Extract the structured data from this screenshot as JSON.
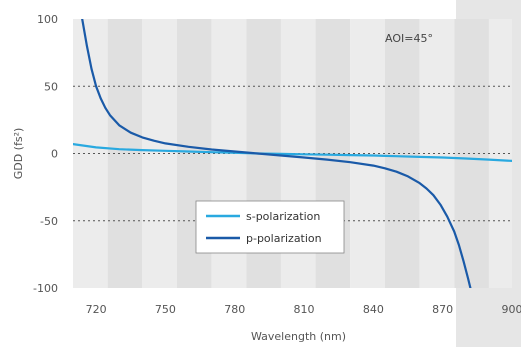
{
  "chart_data": {
    "type": "line",
    "title": "",
    "xlabel": "Wavelength (nm)",
    "ylabel": "GDD (fs²)",
    "xlim": [
      710,
      900
    ],
    "ylim": [
      -100,
      100
    ],
    "x_ticks": [
      "720",
      "750",
      "780",
      "810",
      "840",
      "870",
      "900"
    ],
    "y_ticks": [
      "100",
      "50",
      "0",
      "-50",
      "-100"
    ],
    "y_tick_values": [
      100,
      50,
      0,
      -50,
      -100
    ],
    "x_tick_values": [
      720,
      750,
      780,
      810,
      840,
      870,
      900
    ],
    "gridlines_y": [
      50,
      0,
      -50
    ],
    "grid": "dotted horizontal at 50, 0, -50; alternating shaded vertical bands",
    "annotation": "AOI=45°",
    "legend": {
      "placement": "lower-left-center"
    },
    "series": [
      {
        "name": "s-polarization",
        "color": "#29a9e0",
        "x": [
          710,
          720,
          730,
          740,
          750,
          760,
          770,
          780,
          790,
          800,
          810,
          820,
          830,
          840,
          850,
          860,
          870,
          880,
          890,
          900
        ],
        "y": [
          7,
          4.5,
          3.2,
          2.5,
          2,
          1.5,
          1,
          0.5,
          0,
          -0.3,
          -0.6,
          -0.9,
          -1.2,
          -1.5,
          -2,
          -2.5,
          -3,
          -3.7,
          -4.5,
          -5.5
        ]
      },
      {
        "name": "p-polarization",
        "color": "#1a5aa8",
        "x": [
          714,
          716,
          718,
          720,
          722,
          724,
          726,
          730,
          735,
          740,
          745,
          750,
          760,
          770,
          780,
          790,
          800,
          810,
          820,
          830,
          840,
          845,
          850,
          855,
          860,
          863,
          866,
          869,
          872,
          875,
          877,
          879,
          881,
          882
        ],
        "y": [
          100,
          80,
          63,
          50,
          41,
          34,
          28.5,
          21,
          15.5,
          12,
          9.5,
          7.5,
          5,
          3,
          1.5,
          0,
          -1.5,
          -3,
          -4.5,
          -6.5,
          -9,
          -11,
          -13.5,
          -17,
          -22,
          -26,
          -31,
          -38,
          -47,
          -58,
          -68,
          -80,
          -93,
          -100
        ]
      }
    ]
  },
  "colors": {
    "band_light": "#ececec",
    "band_dark": "#e0e0e0",
    "right_strip": "#e6e6e6",
    "grid": "#555555"
  }
}
